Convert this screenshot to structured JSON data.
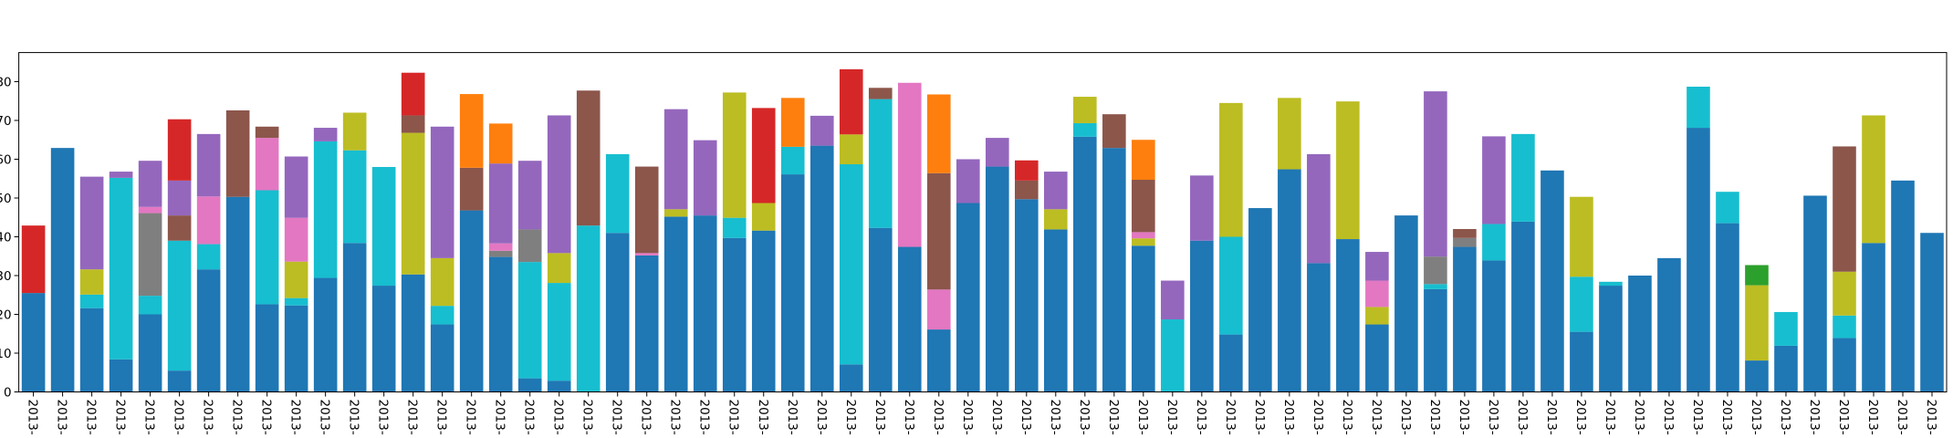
{
  "chart_data": {
    "type": "stacked_bar",
    "categories": [
      "2013-",
      "2013-",
      "2013-",
      "2013-",
      "2013-",
      "2013-",
      "2013-",
      "2013-",
      "2013-",
      "2013-",
      "2013-",
      "2013-",
      "2013-",
      "2013-",
      "2013-",
      "2013-",
      "2013-",
      "2013-",
      "2013-",
      "2013-",
      "2013-",
      "2013-",
      "2013-",
      "2013-",
      "2013-",
      "2013-",
      "2013-",
      "2013-",
      "2013-",
      "2013-",
      "2013-",
      "2013-",
      "2013-",
      "2013-",
      "2013-",
      "2013-",
      "2013-",
      "2013-",
      "2013-",
      "2013-",
      "2013-",
      "2013-",
      "2013-",
      "2013-",
      "2013-",
      "2013-",
      "2013-",
      "2013-",
      "2013-",
      "2013-",
      "2013-",
      "2013-",
      "2013-",
      "2013-",
      "2013-",
      "2013-",
      "2013-",
      "2013-",
      "2013-",
      "2013-",
      "2013-",
      "2013-",
      "2013-",
      "2013-",
      "2013-",
      "2013-"
    ],
    "series": [
      {
        "color": "#1f77b4",
        "values": [
          25.5,
          62.9,
          21.6,
          8.4,
          20.0,
          5.5,
          31.6,
          50.3,
          22.6,
          22.3,
          29.4,
          38.4,
          27.4,
          30.3,
          17.4,
          46.8,
          34.8,
          3.5,
          2.9,
          0,
          41.0,
          35.2,
          45.2,
          45.5,
          39.7,
          41.6,
          56.1,
          63.5,
          7.1,
          42.3,
          37.4,
          16.1,
          48.7,
          58.1,
          49.7,
          41.9,
          65.8,
          62.9,
          37.7,
          0,
          39.0,
          14.8,
          47.4,
          57.4,
          33.2,
          39.4,
          17.4,
          45.5,
          26.5,
          37.4,
          33.9,
          43.9,
          57.1,
          15.5,
          27.4,
          30.0,
          34.5,
          68.1,
          43.5,
          8.1,
          11.9,
          50.6,
          13.9,
          38.4,
          54.5,
          41.0
        ]
      },
      {
        "color": "#17becf",
        "values": [
          0,
          0,
          3.5,
          46.8,
          4.8,
          33.5,
          6.5,
          0,
          29.4,
          1.9,
          35.2,
          23.9,
          30.6,
          0,
          4.8,
          0,
          0,
          30.0,
          25.2,
          42.9,
          20.3,
          0,
          0,
          0,
          5.2,
          0,
          7.1,
          0,
          51.6,
          33.2,
          0,
          0,
          0,
          0,
          0,
          0,
          3.5,
          0,
          0,
          18.7,
          0,
          25.2,
          0,
          0,
          0,
          0,
          0,
          0,
          1.3,
          0,
          9.4,
          22.6,
          0,
          14.2,
          1.0,
          0,
          0,
          10.6,
          8.1,
          0,
          8.7,
          0,
          5.8,
          0,
          0,
          0
        ]
      },
      {
        "color": "#bcbd22",
        "values": [
          0,
          0,
          6.5,
          0,
          0,
          0,
          0,
          0,
          0,
          9.4,
          0,
          9.7,
          0,
          36.5,
          12.3,
          0,
          0,
          0,
          7.7,
          0,
          0,
          0,
          1.9,
          0,
          32.3,
          7.1,
          0,
          0,
          7.7,
          0,
          0,
          0,
          0,
          0,
          0,
          5.2,
          6.8,
          0,
          1.9,
          0,
          0,
          34.5,
          0,
          18.4,
          0,
          35.5,
          4.5,
          0,
          0,
          0,
          0,
          0,
          0,
          20.6,
          0,
          0,
          0,
          0,
          0,
          19.4,
          0,
          0,
          11.3,
          32.9,
          0,
          0
        ]
      },
      {
        "color": "#7f7f7f",
        "values": [
          0,
          0,
          0,
          0,
          21.3,
          0,
          0,
          0,
          0,
          0,
          0,
          0,
          0,
          0,
          0,
          0,
          1.6,
          8.4,
          0,
          0,
          0,
          0,
          0,
          0,
          0,
          0,
          0,
          0,
          0,
          0,
          0,
          0,
          0,
          0,
          0,
          0,
          0,
          0,
          0,
          0,
          0,
          0,
          0,
          0,
          0,
          0,
          0,
          0,
          7.1,
          2.3,
          0,
          0,
          0,
          0,
          0,
          0,
          0,
          0,
          0,
          0,
          0,
          0,
          0,
          0,
          0,
          0
        ]
      },
      {
        "color": "#e377c2",
        "values": [
          0,
          0,
          0,
          0,
          1.6,
          0,
          12.3,
          0,
          13.5,
          11.3,
          0,
          0,
          0,
          0,
          0,
          0,
          1.9,
          0,
          0,
          0,
          0,
          0.6,
          0,
          0,
          0,
          0,
          0,
          0,
          0,
          0,
          42.3,
          10.3,
          0,
          0,
          0,
          0,
          0,
          0,
          1.6,
          0,
          0,
          0,
          0,
          0,
          0,
          0,
          6.8,
          0,
          0,
          0,
          0,
          0,
          0,
          0,
          0,
          0,
          0,
          0,
          0,
          0,
          0,
          0,
          0,
          0,
          0,
          0
        ]
      },
      {
        "color": "#8c564b",
        "values": [
          0,
          0,
          0,
          0,
          0,
          6.5,
          0,
          22.3,
          2.9,
          0,
          0,
          0,
          0,
          4.5,
          0,
          11.0,
          0,
          0,
          0,
          34.8,
          0,
          22.3,
          0,
          0,
          0,
          0,
          0,
          0,
          0,
          2.9,
          0,
          30.0,
          0,
          0,
          4.8,
          0,
          0,
          8.7,
          13.5,
          0,
          0,
          0,
          0,
          0,
          0,
          0,
          0,
          0,
          0,
          2.3,
          0,
          0,
          0,
          0,
          0,
          0,
          0,
          0,
          0,
          0,
          0,
          0,
          32.3,
          0,
          0,
          0
        ]
      },
      {
        "color": "#9467bd",
        "values": [
          0,
          0,
          23.9,
          1.6,
          11.9,
          9.0,
          16.1,
          0,
          0,
          15.8,
          3.5,
          0,
          0,
          0,
          33.9,
          0,
          20.6,
          17.7,
          35.5,
          0,
          0,
          0,
          25.8,
          19.4,
          0,
          0,
          0,
          7.7,
          0,
          0,
          0,
          0,
          11.3,
          7.4,
          0,
          9.7,
          0,
          0,
          0,
          10.0,
          16.8,
          0,
          0,
          0,
          28.1,
          0,
          7.4,
          0,
          42.6,
          0,
          22.6,
          0,
          0,
          0,
          0,
          0,
          0,
          0,
          0,
          0,
          0,
          0,
          0,
          0,
          0,
          0
        ]
      },
      {
        "color": "#ff7f0e",
        "values": [
          0,
          0,
          0,
          0,
          0,
          0,
          0,
          0,
          0,
          0,
          0,
          0,
          0,
          0,
          0,
          19.0,
          10.3,
          0,
          0,
          0,
          0,
          0,
          0,
          0,
          0,
          0,
          12.6,
          0,
          0,
          0,
          0,
          20.3,
          0,
          0,
          0,
          0,
          0,
          0,
          10.3,
          0,
          0,
          0,
          0,
          0,
          0,
          0,
          0,
          0,
          0,
          0,
          0,
          0,
          0,
          0,
          0,
          0,
          0,
          0,
          0,
          0,
          0,
          0,
          0,
          0,
          0,
          0
        ]
      },
      {
        "color": "#d62728",
        "values": [
          17.4,
          0,
          0,
          0,
          0,
          15.8,
          0,
          0,
          0,
          0,
          0,
          0,
          0,
          11.0,
          0,
          0,
          0,
          0,
          0,
          0,
          0,
          0,
          0,
          0,
          0,
          24.5,
          0,
          0,
          16.8,
          0,
          0,
          0,
          0,
          0,
          5.2,
          0,
          0,
          0,
          0,
          0,
          0,
          0,
          0,
          0,
          0,
          0,
          0,
          0,
          0,
          0,
          0,
          0,
          0,
          0,
          0,
          0,
          0,
          0,
          0,
          0,
          0,
          0,
          0,
          0,
          0,
          0
        ]
      },
      {
        "color": "#2ca02c",
        "values": [
          0,
          0,
          0,
          0,
          0,
          0,
          0,
          0,
          0,
          0,
          0,
          0,
          0,
          0,
          0,
          0,
          0,
          0,
          0,
          0,
          0,
          0,
          0,
          0,
          0,
          0,
          0,
          0,
          0,
          0,
          0,
          0,
          0,
          0,
          0,
          0,
          0,
          0,
          0,
          0,
          0,
          0,
          0,
          0,
          0,
          0,
          0,
          0,
          0,
          0,
          0,
          0,
          0,
          0,
          0,
          0,
          0,
          0,
          0,
          5.2,
          0,
          0,
          0,
          0,
          0,
          0
        ]
      }
    ],
    "ylim": [
      0,
      87.5
    ],
    "yticks": [
      0,
      10,
      20,
      30,
      40,
      50,
      60,
      70,
      80
    ],
    "grid": false
  }
}
